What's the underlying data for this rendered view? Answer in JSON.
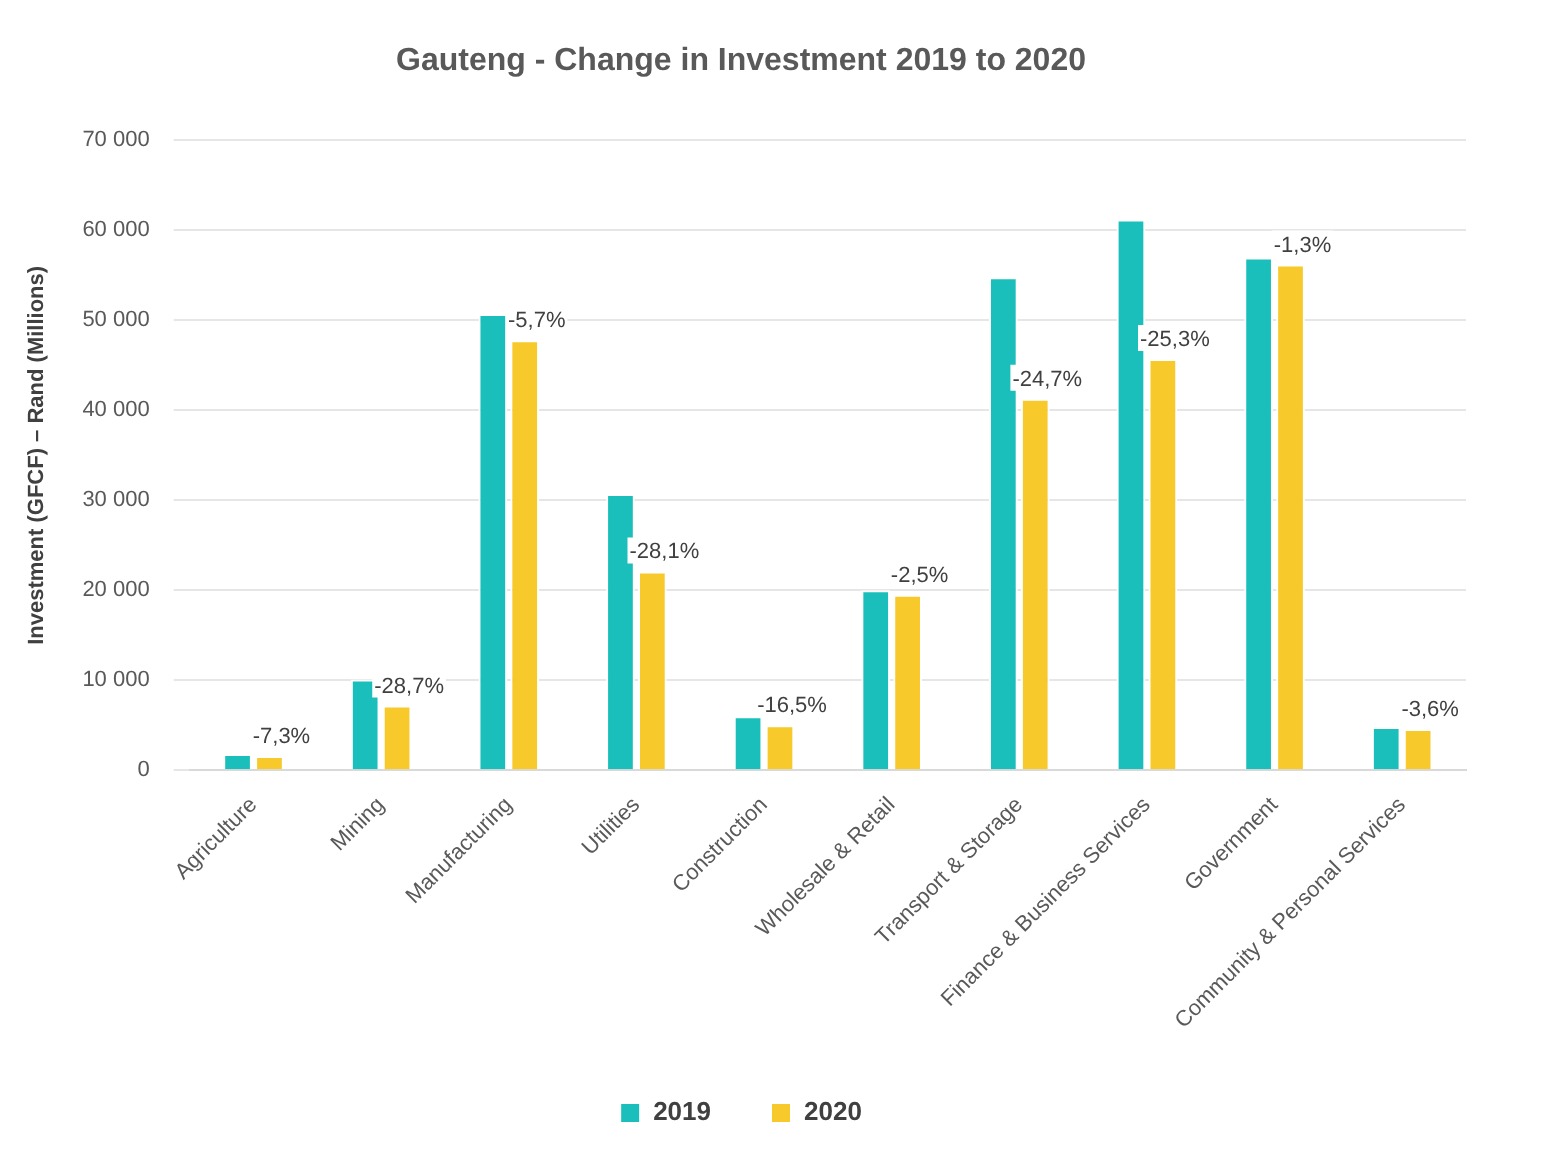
{
  "chart_data": {
    "type": "bar",
    "title": "Gauteng - Change in Investment 2019 to 2020",
    "ylabel": "Investment (GFCF) – Rand (Millions)",
    "categories": [
      "Agriculture",
      "Mining",
      "Manufacturing",
      "Utilities",
      "Construction",
      "Wholesale & Retail",
      "Transport & Storage",
      "Finance & Business Services",
      "Government",
      "Community & Personal Services"
    ],
    "series": [
      {
        "name": "2019",
        "color": "#1abfbb",
        "values": [
          1800,
          10100,
          50700,
          30700,
          6000,
          20000,
          54800,
          61200,
          57000,
          4800
        ]
      },
      {
        "name": "2020",
        "color": "#f7c92b",
        "values": [
          1600,
          7200,
          47800,
          22100,
          5000,
          19500,
          41300,
          45700,
          56200,
          4600
        ]
      }
    ],
    "annotations": [
      {
        "text": "-7,3%",
        "x": "Agriculture",
        "y": 1600
      },
      {
        "text": "-28,7%",
        "x": "Mining",
        "y": 7200
      },
      {
        "text": "-5,7%",
        "x": "Manufacturing",
        "y": 47800
      },
      {
        "text": "-28,1%",
        "x": "Utilities",
        "y": 22100
      },
      {
        "text": "-16,5%",
        "x": "Construction",
        "y": 5000
      },
      {
        "text": "-2,5%",
        "x": "Wholesale & Retail",
        "y": 19500
      },
      {
        "text": "-24,7%",
        "x": "Transport & Storage",
        "y": 41300
      },
      {
        "text": "-25,3%",
        "x": "Finance & Business Services",
        "y": 45700
      },
      {
        "text": "-1,3%",
        "x": "Government",
        "y": 56200
      },
      {
        "text": "-3,6%",
        "x": "Community & Personal Services",
        "y": 4600
      }
    ],
    "ylim": [
      0,
      70000
    ],
    "yticks": [
      0,
      {
        "value": 10000,
        "label": "10 000"
      },
      {
        "value": 20000,
        "label": "20 000"
      },
      {
        "value": 30000,
        "label": "30 000"
      },
      {
        "value": 40000,
        "label": "40 000"
      },
      {
        "value": 50000,
        "label": "50 000"
      },
      {
        "value": 60000,
        "label": "60 000"
      },
      {
        "value": 70000,
        "label": "70 000"
      }
    ],
    "grid": "y",
    "legend": "bottom"
  }
}
